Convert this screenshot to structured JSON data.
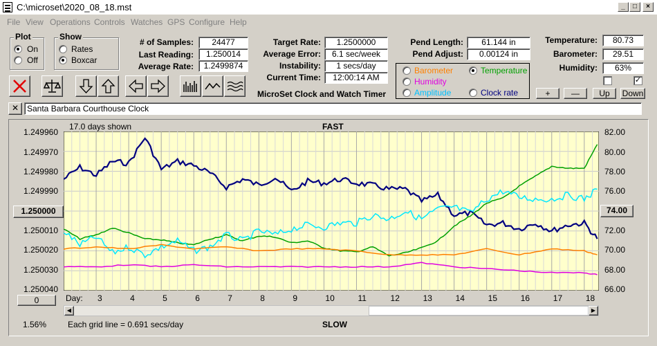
{
  "window": {
    "title": "C:\\microset\\2020_08_18.mst"
  },
  "menu": [
    "File",
    "View",
    "Operations",
    "Controls",
    "Watches",
    "GPS",
    "Configure",
    "Help"
  ],
  "plot_group": {
    "title": "Plot",
    "options": [
      "On",
      "Off"
    ],
    "selected": "On"
  },
  "show_group": {
    "title": "Show",
    "options": [
      "Rates",
      "Boxcar"
    ],
    "selected": "Boxcar"
  },
  "stats1": [
    {
      "label": "# of Samples:",
      "value": "24477"
    },
    {
      "label": "Last Reading:",
      "value": "1.250014"
    },
    {
      "label": "Average Rate:",
      "value": "1.2499874"
    }
  ],
  "stats2": [
    {
      "label": "Target Rate:",
      "value": "1.2500000"
    },
    {
      "label": "Average Error:",
      "value": "6.1 sec/week"
    },
    {
      "label": "Instability:",
      "value": "1 secs/day"
    },
    {
      "label": "Current Time:",
      "value": "12:00:14 AM"
    }
  ],
  "app_caption": "MicroSet Clock and Watch Timer",
  "pend": [
    {
      "label": "Pend Length:",
      "value": "61.144 in"
    },
    {
      "label": "Pend Adjust:",
      "value": "0.00124 in"
    }
  ],
  "env": [
    {
      "label": "Temperature:",
      "value": "80.73"
    },
    {
      "label": "Barometer:",
      "value": "29.51"
    },
    {
      "label": "Humidity:",
      "value": "63%"
    }
  ],
  "series_options": [
    {
      "label": "Barometer",
      "color": "#ff8000",
      "selected": false
    },
    {
      "label": "Temperature",
      "color": "#00a000",
      "selected": true
    },
    {
      "label": "Humidity",
      "color": "#e000e0",
      "selected": false
    },
    {
      "label": "Clock rate",
      "color": "#000080",
      "selected": false
    },
    {
      "label": "Amplitude",
      "color": "#00c0ff",
      "selected": false
    }
  ],
  "small_buttons": [
    "+",
    "—",
    "Up",
    "Down"
  ],
  "checks": [
    false,
    true
  ],
  "clock_name": "Santa Barbara Courthouse Clock",
  "close_glyph": "✕",
  "left_axis_button": "1.250000",
  "right_axis_button": "74.00",
  "zero_button": "0",
  "days_shown": "17.0 days shown",
  "top_label": "FAST",
  "bottom_label": "SLOW",
  "day_prefix": "Day:",
  "percent": "1.56%",
  "grid_note": "Each grid line = 0.691 secs/day",
  "chart_data": {
    "type": "line",
    "x_label_prefix": "Day:",
    "x": [
      3,
      4,
      5,
      6,
      7,
      8,
      9,
      10,
      11,
      12,
      13,
      14,
      15,
      16,
      17,
      18
    ],
    "left_axis": {
      "ticks": [
        "1.249960",
        "1.249970",
        "1.249980",
        "1.249990",
        "1.250000",
        "1.250010",
        "1.250020",
        "1.250030",
        "1.250040"
      ],
      "range": [
        1.24996,
        1.25004
      ],
      "inverted": true
    },
    "right_axis": {
      "ticks": [
        "82.00",
        "80.00",
        "78.00",
        "76.00",
        "74.00",
        "72.00",
        "70.00",
        "68.00",
        "66.00"
      ],
      "range": [
        66,
        82
      ]
    },
    "title_top": "FAST",
    "title_bottom": "SLOW",
    "grid": true,
    "series": [
      {
        "name": "Clock rate",
        "color": "#000080",
        "axis": "left",
        "x": [
          2,
          2.5,
          3,
          3.5,
          4,
          4.5,
          5,
          5.5,
          6,
          6.5,
          7,
          7.5,
          8,
          8.5,
          9,
          9.5,
          10,
          10.5,
          11,
          11.5,
          12,
          12.5,
          13,
          13.5,
          14,
          14.5,
          15,
          15.5,
          16,
          16.5,
          17,
          17.5,
          18,
          18.4
        ],
        "y": [
          1.249984,
          1.249978,
          1.249982,
          1.249975,
          1.249976,
          1.249963,
          1.249979,
          1.249975,
          1.249977,
          1.249981,
          1.249988,
          1.249984,
          1.249987,
          1.249983,
          1.24999,
          1.249985,
          1.249986,
          1.249984,
          1.249986,
          1.249987,
          1.249989,
          1.249989,
          1.249995,
          1.249992,
          1.250002,
          1.250001,
          1.250007,
          1.250006,
          1.250009,
          1.250006,
          1.25001,
          1.250007,
          1.250006,
          1.250014
        ]
      },
      {
        "name": "Temperature",
        "color": "#00a000",
        "axis": "right",
        "x": [
          2,
          2.5,
          3,
          3.5,
          4,
          4.5,
          5,
          5.5,
          6,
          6.5,
          7,
          7.5,
          8,
          8.5,
          9,
          9.5,
          10,
          10.5,
          11,
          11.5,
          12,
          12.5,
          13,
          13.5,
          14,
          14.5,
          15,
          15.5,
          16,
          16.5,
          17,
          17.5,
          18,
          18.4
        ],
        "y": [
          72.2,
          71.2,
          71.6,
          72.3,
          71.8,
          71.2,
          71.1,
          70.8,
          70.6,
          71.2,
          71.6,
          71.0,
          71.5,
          71.4,
          70.8,
          71.0,
          70.3,
          70.0,
          69.9,
          70.4,
          69.5,
          69.8,
          70.3,
          71.0,
          72.5,
          73.5,
          74.8,
          75.3,
          76.5,
          77.5,
          78.5,
          78.3,
          78.3,
          80.7
        ]
      },
      {
        "name": "Amplitude",
        "color": "#00e8ff",
        "axis": "left",
        "x": [
          2,
          2.5,
          3,
          3.5,
          4,
          4.5,
          5,
          5.5,
          6,
          6.5,
          7,
          7.5,
          8,
          8.5,
          9,
          9.5,
          10,
          10.5,
          11,
          11.5,
          12,
          12.5,
          13,
          13.5,
          14,
          14.5,
          15,
          15.5,
          16,
          16.5,
          17,
          17.5,
          18,
          18.4
        ],
        "y": [
          1.25001,
          1.250017,
          1.250013,
          1.250021,
          1.250018,
          1.250022,
          1.250018,
          1.250015,
          1.25002,
          1.250018,
          1.250012,
          1.250015,
          1.25001,
          1.250012,
          1.250009,
          1.250007,
          1.250008,
          1.250006,
          1.250006,
          1.250002,
          1.250004,
          1.25,
          1.250004,
          1.249999,
          1.249998,
          1.250001,
          1.249994,
          1.24999,
          1.249993,
          1.249994,
          1.249994,
          1.249992,
          1.249994,
          1.249989
        ]
      },
      {
        "name": "Barometer",
        "color": "#ff8000",
        "axis": "left",
        "x": [
          2,
          3,
          4,
          5,
          6,
          7,
          8,
          9,
          10,
          11,
          12,
          13,
          14,
          15,
          16,
          17,
          18,
          18.4
        ],
        "y": [
          1.250019,
          1.250018,
          1.250019,
          1.250017,
          1.250019,
          1.250018,
          1.25002,
          1.250019,
          1.250019,
          1.25002,
          1.250022,
          1.250022,
          1.250022,
          1.250019,
          1.250022,
          1.250019,
          1.25002,
          1.250022
        ]
      },
      {
        "name": "Humidity",
        "color": "#e000e0",
        "axis": "left",
        "x": [
          2,
          3,
          4,
          5,
          6,
          7,
          8,
          9,
          10,
          11,
          12,
          13,
          14,
          15,
          16,
          17,
          18,
          18.4
        ],
        "y": [
          1.250028,
          1.250028,
          1.250027,
          1.250028,
          1.250027,
          1.250028,
          1.250028,
          1.250028,
          1.250028,
          1.250028,
          1.250028,
          1.250026,
          1.250028,
          1.250029,
          1.25003,
          1.250031,
          1.250031,
          1.250032
        ]
      }
    ]
  }
}
